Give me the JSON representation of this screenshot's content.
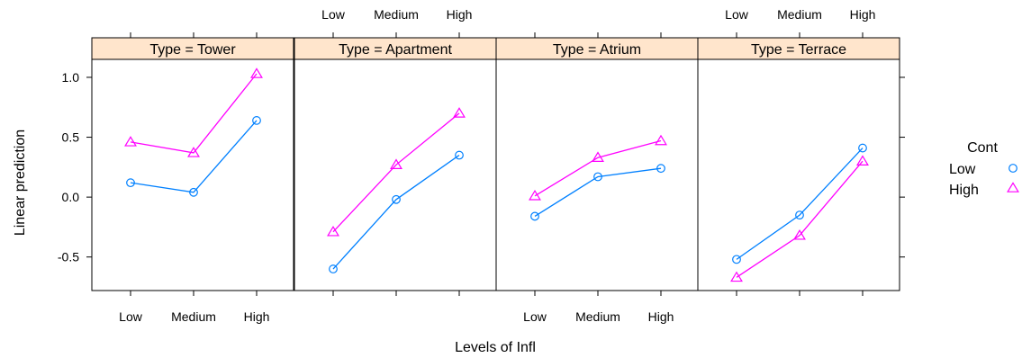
{
  "chart_data": {
    "type": "line",
    "xlabel": "Levels of Infl",
    "ylabel": "Linear prediction",
    "categories": [
      "Low",
      "Medium",
      "High"
    ],
    "ylim": [
      -0.78,
      1.15
    ],
    "yticks": [
      -0.5,
      0.0,
      0.5,
      1.0
    ],
    "ytick_labels": [
      "-0.5",
      "0.0",
      "0.5",
      "1.0"
    ],
    "grid": false,
    "legend": {
      "title": "Cont",
      "placement": "right",
      "entries": [
        "Low",
        "High"
      ]
    },
    "colors": {
      "Low": "#0080ff",
      "High": "#ff00ff",
      "strip_background": "#ffe5cc"
    },
    "panels": [
      {
        "strip_label": "Type = Tower",
        "series": [
          {
            "name": "Low",
            "values": [
              0.12,
              0.04,
              0.64
            ]
          },
          {
            "name": "High",
            "values": [
              0.46,
              0.37,
              1.03
            ]
          }
        ]
      },
      {
        "strip_label": "Type = Apartment",
        "series": [
          {
            "name": "Low",
            "values": [
              -0.6,
              -0.02,
              0.35
            ]
          },
          {
            "name": "High",
            "values": [
              -0.29,
              0.27,
              0.7
            ]
          }
        ]
      },
      {
        "strip_label": "Type = Atrium",
        "series": [
          {
            "name": "Low",
            "values": [
              -0.16,
              0.17,
              0.24
            ]
          },
          {
            "name": "High",
            "values": [
              0.01,
              0.33,
              0.47
            ]
          }
        ]
      },
      {
        "strip_label": "Type = Terrace",
        "series": [
          {
            "name": "Low",
            "values": [
              -0.52,
              -0.15,
              0.41
            ]
          },
          {
            "name": "High",
            "values": [
              -0.67,
              -0.32,
              0.3
            ]
          }
        ]
      }
    ]
  }
}
